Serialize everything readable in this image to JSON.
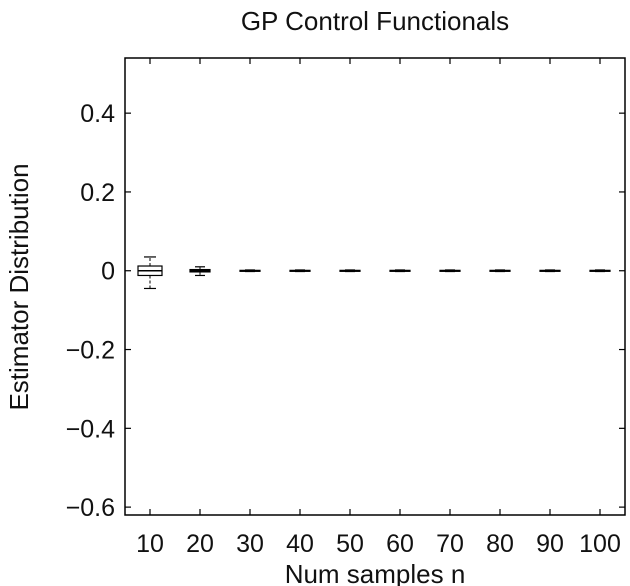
{
  "chart_data": {
    "type": "boxplot",
    "title": "GP Control Functionals",
    "xlabel": "Num samples n",
    "ylabel": "Estimator Distribution",
    "ylim": [
      -0.62,
      0.54
    ],
    "yticks": [
      0.4,
      0.2,
      0,
      -0.2,
      -0.4,
      -0.6
    ],
    "ytick_labels": [
      "0.4",
      "0.2",
      "0",
      "−0.2",
      "−0.4",
      "−0.6"
    ],
    "categories": [
      "10",
      "20",
      "30",
      "40",
      "50",
      "60",
      "70",
      "80",
      "90",
      "100"
    ],
    "boxes": [
      {
        "whisker_low": -0.045,
        "q1": -0.012,
        "median": 0.0,
        "q3": 0.012,
        "whisker_high": 0.035
      },
      {
        "whisker_low": -0.012,
        "q1": -0.003,
        "median": 0.0,
        "q3": 0.003,
        "whisker_high": 0.01
      },
      {
        "whisker_low": -0.002,
        "q1": -0.001,
        "median": 0.0,
        "q3": 0.001,
        "whisker_high": 0.002
      },
      {
        "whisker_low": -0.002,
        "q1": -0.001,
        "median": 0.0,
        "q3": 0.001,
        "whisker_high": 0.002
      },
      {
        "whisker_low": -0.002,
        "q1": -0.001,
        "median": 0.0,
        "q3": 0.001,
        "whisker_high": 0.002
      },
      {
        "whisker_low": -0.002,
        "q1": -0.001,
        "median": 0.0,
        "q3": 0.001,
        "whisker_high": 0.002
      },
      {
        "whisker_low": -0.002,
        "q1": -0.001,
        "median": 0.0,
        "q3": 0.001,
        "whisker_high": 0.002
      },
      {
        "whisker_low": -0.002,
        "q1": -0.001,
        "median": 0.0,
        "q3": 0.001,
        "whisker_high": 0.002
      },
      {
        "whisker_low": -0.002,
        "q1": -0.001,
        "median": 0.0,
        "q3": 0.001,
        "whisker_high": 0.002
      },
      {
        "whisker_low": -0.002,
        "q1": -0.001,
        "median": 0.0,
        "q3": 0.001,
        "whisker_high": 0.002
      }
    ],
    "grid": false,
    "colors": {
      "axis": "#000000",
      "box": "#000000",
      "text": "#111111"
    }
  }
}
